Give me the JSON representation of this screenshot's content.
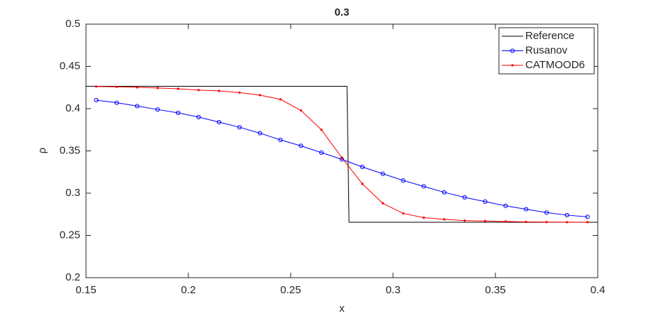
{
  "chart_data": {
    "type": "line",
    "title": "0.3",
    "x_label": "x",
    "y_label": "ρ",
    "xlim": [
      0.15,
      0.4
    ],
    "xticks": [
      0.15,
      0.2,
      0.25,
      0.3,
      0.35,
      0.4
    ],
    "ylim": [
      0.2,
      0.5
    ],
    "yticks": [
      0.2,
      0.25,
      0.3,
      0.35,
      0.4,
      0.45,
      0.5
    ],
    "grid": false,
    "legend_position": "top-right",
    "series": [
      {
        "name": "Reference",
        "color": "#000000",
        "marker": "none",
        "x": [
          0.15,
          0.2775,
          0.2785,
          0.4
        ],
        "values": [
          0.4265,
          0.4265,
          0.2655,
          0.2655
        ]
      },
      {
        "name": "Rusanov",
        "color": "#0000ff",
        "marker": "circle",
        "x": [
          0.155,
          0.165,
          0.175,
          0.185,
          0.195,
          0.205,
          0.215,
          0.225,
          0.235,
          0.245,
          0.255,
          0.265,
          0.275,
          0.285,
          0.295,
          0.305,
          0.315,
          0.325,
          0.335,
          0.345,
          0.355,
          0.365,
          0.375,
          0.385,
          0.395
        ],
        "values": [
          0.41,
          0.407,
          0.403,
          0.399,
          0.395,
          0.39,
          0.384,
          0.378,
          0.371,
          0.363,
          0.356,
          0.348,
          0.34,
          0.331,
          0.323,
          0.315,
          0.308,
          0.301,
          0.295,
          0.29,
          0.285,
          0.281,
          0.277,
          0.274,
          0.272
        ]
      },
      {
        "name": "CATMOOD6",
        "color": "#ff0000",
        "marker": "dot",
        "x": [
          0.155,
          0.165,
          0.175,
          0.185,
          0.195,
          0.205,
          0.215,
          0.225,
          0.235,
          0.245,
          0.255,
          0.265,
          0.275,
          0.285,
          0.295,
          0.305,
          0.315,
          0.325,
          0.335,
          0.345,
          0.355,
          0.365,
          0.375,
          0.385,
          0.395
        ],
        "values": [
          0.4262,
          0.4258,
          0.4252,
          0.4245,
          0.4235,
          0.422,
          0.421,
          0.419,
          0.416,
          0.411,
          0.398,
          0.375,
          0.342,
          0.311,
          0.288,
          0.276,
          0.271,
          0.269,
          0.2675,
          0.267,
          0.2665,
          0.266,
          0.2658,
          0.2656,
          0.2657
        ]
      }
    ]
  }
}
